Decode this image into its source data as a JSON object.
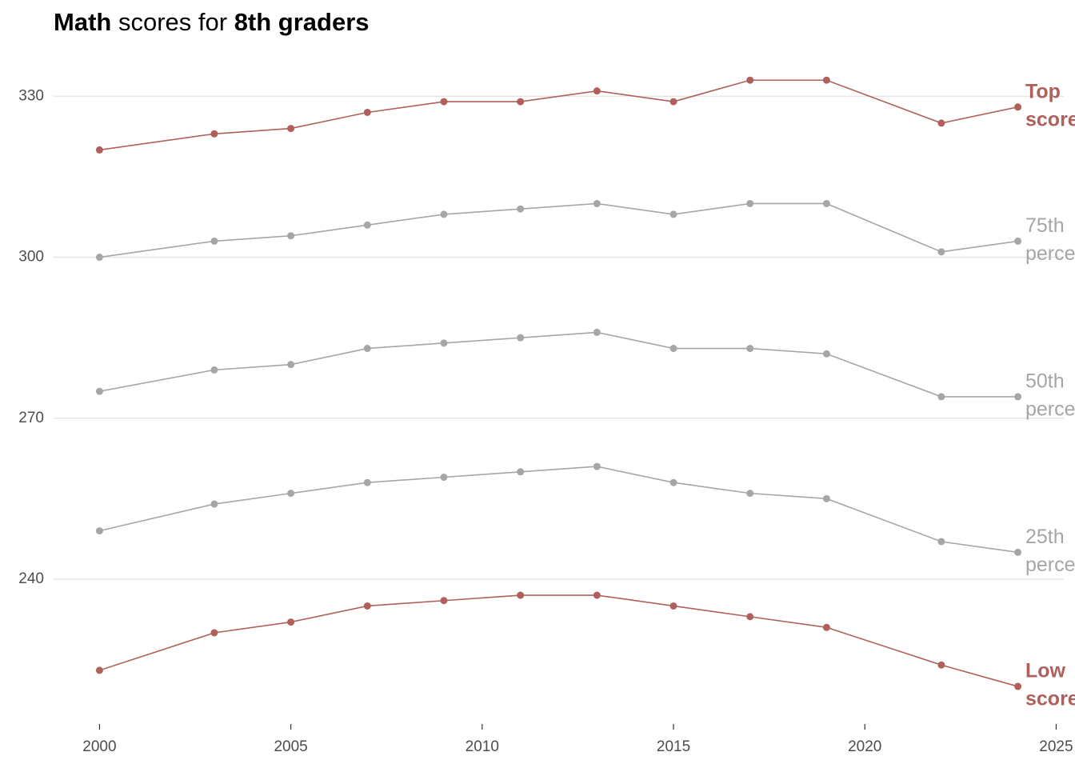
{
  "chart_data": {
    "type": "line",
    "title_parts": [
      "Math",
      "scores for",
      "8th graders"
    ],
    "x": [
      2000,
      2003,
      2005,
      2007,
      2009,
      2011,
      2013,
      2015,
      2017,
      2019,
      2022,
      2024
    ],
    "xlim": [
      1998.8,
      2025.2
    ],
    "xticks": [
      2000,
      2005,
      2010,
      2015,
      2020,
      2025
    ],
    "ylim": [
      213,
      339
    ],
    "yticks": [
      240,
      270,
      300,
      330
    ],
    "grid": true,
    "series": [
      {
        "label_lines": [
          "Top",
          "scorers"
        ],
        "highlight": true,
        "color": "#b0605a",
        "values": [
          320,
          323,
          324,
          327,
          329,
          329,
          331,
          329,
          333,
          333,
          325,
          328
        ]
      },
      {
        "label_lines": [
          "75th",
          "percentile"
        ],
        "highlight": false,
        "color": "#a6a6a6",
        "values": [
          300,
          303,
          304,
          306,
          308,
          309,
          310,
          308,
          310,
          310,
          301,
          303
        ]
      },
      {
        "label_lines": [
          "50th",
          "percentile"
        ],
        "highlight": false,
        "color": "#a6a6a6",
        "values": [
          275,
          279,
          280,
          283,
          284,
          285,
          286,
          283,
          283,
          282,
          274,
          274
        ]
      },
      {
        "label_lines": [
          "25th",
          "percentile"
        ],
        "highlight": false,
        "color": "#a6a6a6",
        "values": [
          249,
          254,
          256,
          258,
          259,
          260,
          261,
          258,
          256,
          255,
          247,
          245
        ]
      },
      {
        "label_lines": [
          "Low",
          "scorers"
        ],
        "highlight": true,
        "color": "#b0605a",
        "values": [
          223,
          230,
          232,
          235,
          236,
          237,
          237,
          235,
          233,
          231,
          224,
          220
        ]
      }
    ]
  }
}
